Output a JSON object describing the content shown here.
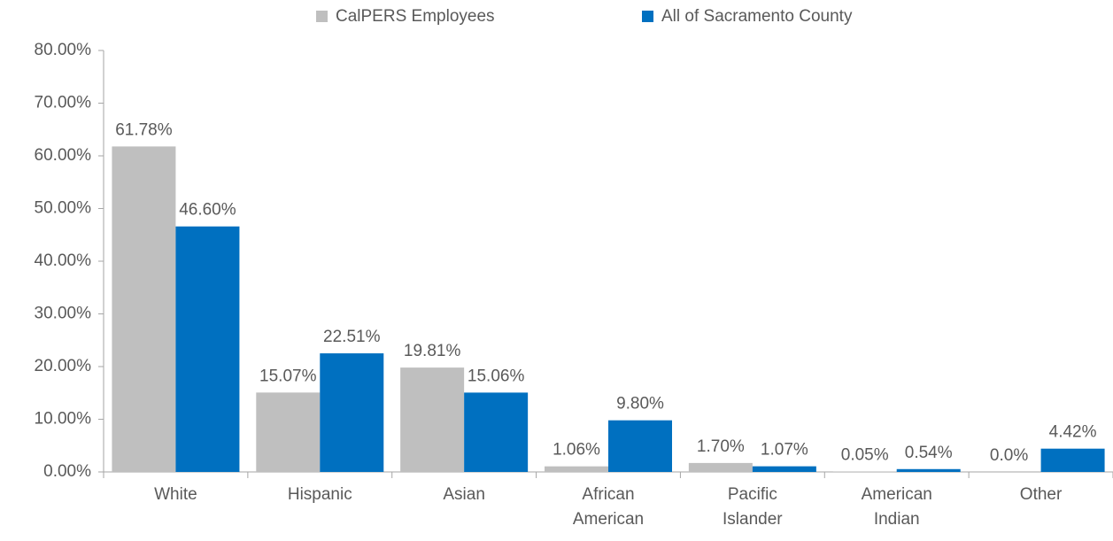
{
  "chart_data": {
    "type": "bar",
    "categories": [
      "White",
      "Hispanic",
      "Asian",
      "African American",
      "Pacific Islander",
      "American Indian",
      "Other"
    ],
    "series": [
      {
        "name": "CalPERS Employees",
        "color": "#bfbfbf",
        "values": [
          61.78,
          15.07,
          19.81,
          1.06,
          1.7,
          0.05,
          0.0
        ],
        "value_labels": [
          "61.78%",
          "15.07%",
          "19.81%",
          "1.06%",
          "1.70%",
          "0.05%",
          "0.0%"
        ]
      },
      {
        "name": "All of Sacramento County",
        "color": "#0070c0",
        "values": [
          46.6,
          22.51,
          15.06,
          9.8,
          1.07,
          0.54,
          4.42
        ],
        "value_labels": [
          "46.60%",
          "22.51%",
          "15.06%",
          "9.80%",
          "1.07%",
          "0.54%",
          "4.42%"
        ]
      }
    ],
    "ylim": [
      0,
      80
    ],
    "yticks": [
      {
        "value": 0,
        "label": "0.00%"
      },
      {
        "value": 10,
        "label": "10.00%"
      },
      {
        "value": 20,
        "label": "20.00%"
      },
      {
        "value": 30,
        "label": "30.00%"
      },
      {
        "value": 40,
        "label": "40.00%"
      },
      {
        "value": 50,
        "label": "50.00%"
      },
      {
        "value": 60,
        "label": "60.00%"
      },
      {
        "value": 70,
        "label": "70.00%"
      },
      {
        "value": 80,
        "label": "80.00%"
      }
    ],
    "legend": "top",
    "grid": false
  }
}
